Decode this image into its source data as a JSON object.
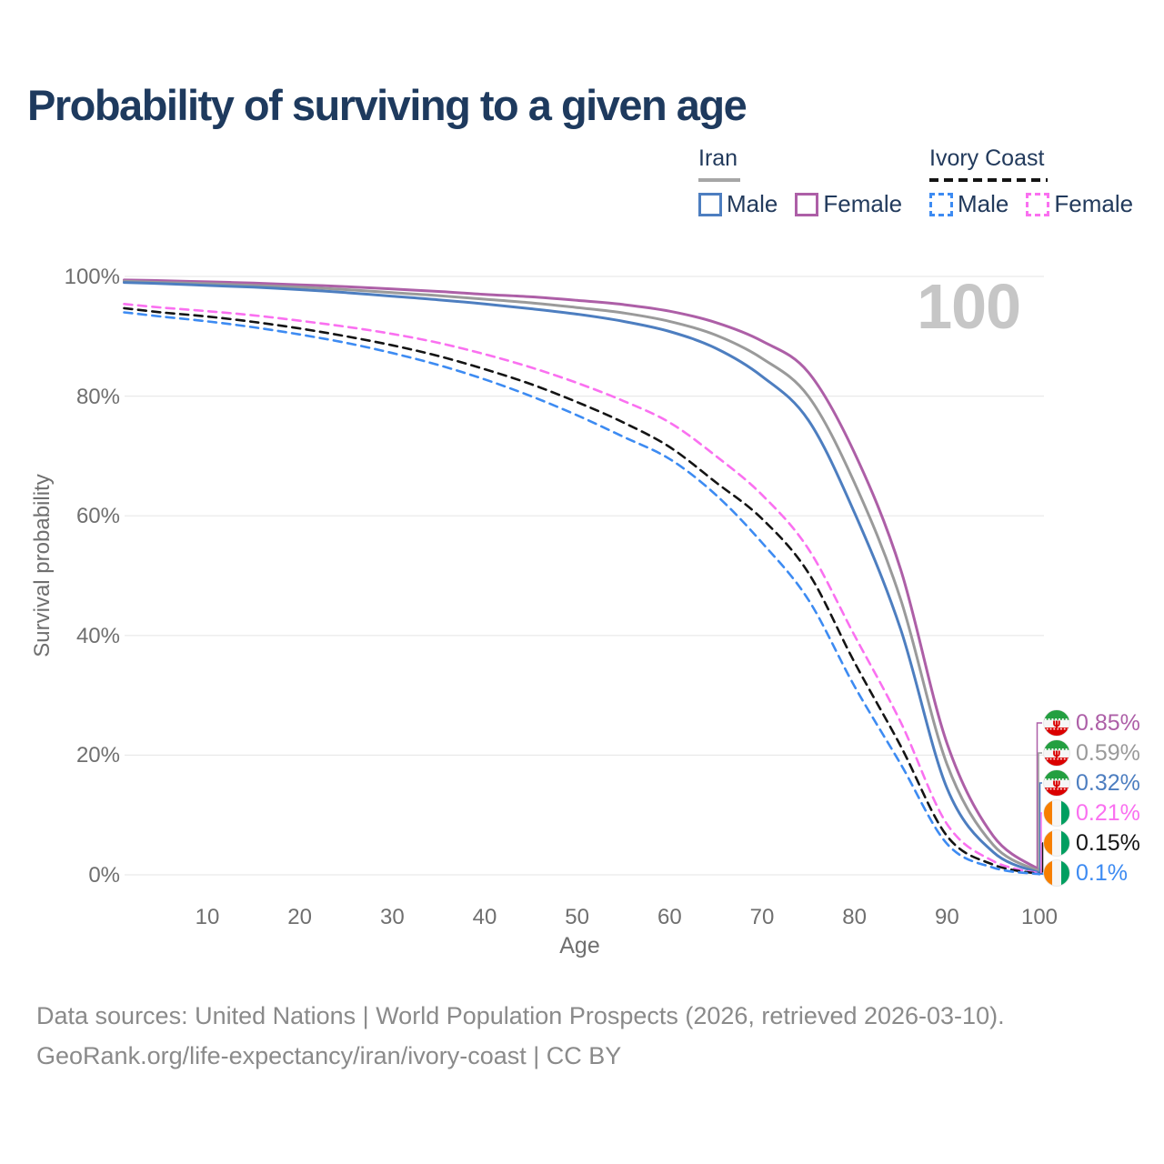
{
  "title": "Probability of surviving to a given age",
  "watermark": "100",
  "legend": {
    "groups": [
      {
        "name": "Iran",
        "line_style": "solid",
        "underline_color": "#a6a6a6",
        "items": [
          {
            "label": "Male",
            "color": "#4d7ec0"
          },
          {
            "label": "Female",
            "color": "#ad5fa7"
          }
        ]
      },
      {
        "name": "Ivory Coast",
        "line_style": "dashed",
        "underline_color": "#141414",
        "items": [
          {
            "label": "Male",
            "color": "#3d8bf2"
          },
          {
            "label": "Female",
            "color": "#fa70f0"
          }
        ]
      }
    ]
  },
  "chart_data": {
    "type": "line",
    "title": "Probability of surviving to a given age",
    "xlabel": "Age",
    "ylabel": "Survival probability",
    "xlim": [
      1,
      100
    ],
    "ylim": [
      0,
      100
    ],
    "grid": "horizontal-only",
    "x_ticks": [
      10,
      20,
      30,
      40,
      50,
      60,
      70,
      80,
      90,
      100
    ],
    "y_ticks": [
      0,
      20,
      40,
      60,
      80,
      100
    ],
    "y_tick_labels": [
      "0%",
      "20%",
      "40%",
      "60%",
      "80%",
      "100%"
    ],
    "ages": [
      1,
      5,
      10,
      15,
      20,
      25,
      30,
      35,
      40,
      45,
      50,
      55,
      60,
      65,
      70,
      75,
      80,
      85,
      90,
      95,
      100
    ],
    "series": [
      {
        "name": "Iran Female",
        "country": "Iran",
        "sex": "Female",
        "color": "#ad5fa7",
        "dashed": false,
        "end_label": "0.85%",
        "flag": "iran",
        "values": [
          99.4,
          99.3,
          99.1,
          98.9,
          98.6,
          98.3,
          97.9,
          97.5,
          97.0,
          96.6,
          96.0,
          95.3,
          94.2,
          92.3,
          89.2,
          84.0,
          70.5,
          51.0,
          22.0,
          6.5,
          0.85
        ]
      },
      {
        "name": "Iran",
        "country": "Iran",
        "sex": "Both",
        "color": "#9a9a9a",
        "dashed": false,
        "end_label": "0.59%",
        "flag": "iran",
        "values": [
          99.2,
          99.0,
          98.8,
          98.5,
          98.2,
          97.8,
          97.3,
          96.8,
          96.2,
          95.6,
          94.8,
          93.9,
          92.5,
          90.2,
          86.3,
          80.0,
          65.5,
          46.0,
          18.5,
          5.0,
          0.59
        ]
      },
      {
        "name": "Iran Male",
        "country": "Iran",
        "sex": "Male",
        "color": "#4d7ec0",
        "dashed": false,
        "end_label": "0.32%",
        "flag": "iran",
        "values": [
          99.0,
          98.8,
          98.5,
          98.2,
          97.8,
          97.3,
          96.7,
          96.1,
          95.4,
          94.6,
          93.7,
          92.5,
          90.8,
          88.0,
          83.3,
          76.0,
          60.5,
          41.0,
          14.5,
          3.8,
          0.32
        ]
      },
      {
        "name": "Ivory Coast Female",
        "country": "Ivory Coast",
        "sex": "Female",
        "color": "#fa70f0",
        "dashed": true,
        "end_label": "0.21%",
        "flag": "ivory-coast",
        "values": [
          95.4,
          94.8,
          94.2,
          93.5,
          92.6,
          91.6,
          90.4,
          88.9,
          87.0,
          84.8,
          82.2,
          79.2,
          75.6,
          70.0,
          63.5,
          54.5,
          40.0,
          25.5,
          8.5,
          2.3,
          0.21
        ]
      },
      {
        "name": "Ivory Coast",
        "country": "Ivory Coast",
        "sex": "Both",
        "color": "#141414",
        "dashed": true,
        "end_label": "0.15%",
        "flag": "ivory-coast",
        "values": [
          94.7,
          94.0,
          93.3,
          92.4,
          91.3,
          90.0,
          88.5,
          86.7,
          84.5,
          82.0,
          79.0,
          75.6,
          71.5,
          65.6,
          59.5,
          50.5,
          35.5,
          21.5,
          6.5,
          1.7,
          0.15
        ]
      },
      {
        "name": "Ivory Coast Male",
        "country": "Ivory Coast",
        "sex": "Male",
        "color": "#3d8bf2",
        "dashed": true,
        "end_label": "0.1%",
        "flag": "ivory-coast",
        "values": [
          94.0,
          93.3,
          92.5,
          91.5,
          90.3,
          88.9,
          87.2,
          85.2,
          82.8,
          80.0,
          76.8,
          73.2,
          69.5,
          63.5,
          55.5,
          46.0,
          31.5,
          18.5,
          5.2,
          1.2,
          0.1
        ]
      }
    ]
  },
  "footer": {
    "line1": "Data sources: United Nations | World Population Prospects (2026, retrieved 2026-03-10).",
    "line2": "GeoRank.org/life-expectancy/iran/ivory-coast | CC BY"
  }
}
